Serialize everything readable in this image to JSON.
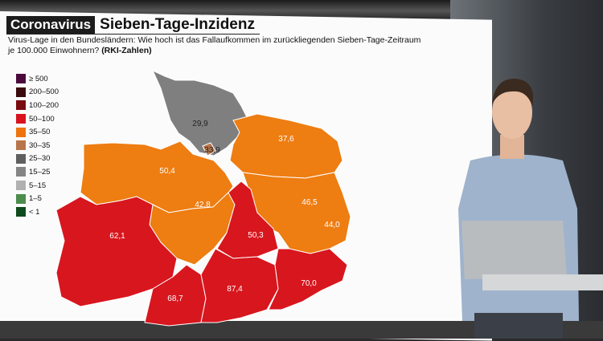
{
  "header": {
    "tag": "Coronavirus",
    "title": "Sieben-Tage-Inzidenz",
    "subtitle": "Virus-Lage in den Bundesländern: Wie hoch ist das Fallaufkommen im zurückliegenden Sieben-Tage-Zeitraum je 100.000 Einwohnern?",
    "source": "(RKI-Zahlen)"
  },
  "legend": [
    {
      "label": "≥ 500",
      "color": "#4a0a3c"
    },
    {
      "label": "200–500",
      "color": "#3a0a0c"
    },
    {
      "label": "100–200",
      "color": "#7a0a0e"
    },
    {
      "label": "50–100",
      "color": "#d8121e"
    },
    {
      "label": "35–50",
      "color": "#ee7410"
    },
    {
      "label": "30–35",
      "color": "#b8744a"
    },
    {
      "label": "25–30",
      "color": "#5f5f5f"
    },
    {
      "label": "15–25",
      "color": "#858585"
    },
    {
      "label": "5–15",
      "color": "#b0b0b0"
    },
    {
      "label": "1–5",
      "color": "#4c8c4c"
    },
    {
      "label": "< 1",
      "color": "#0f4a1c"
    }
  ],
  "regions": [
    {
      "value": "29,9",
      "color": "#7f7f7f"
    },
    {
      "value": "37,6",
      "color": "#ee7d12"
    },
    {
      "value": "50,4",
      "color": "#ee7d12"
    },
    {
      "value": "42,8",
      "color": "#ee7d12"
    },
    {
      "value": "46,5",
      "color": "#ee7d12"
    },
    {
      "value": "44,0",
      "color": "#ee7d12"
    },
    {
      "value": "50,3",
      "color": "#d8161e"
    },
    {
      "value": "62,1",
      "color": "#d8161e"
    },
    {
      "value": "68,7",
      "color": "#d8161e"
    },
    {
      "value": "87,4",
      "color": "#d8161e"
    },
    {
      "value": "70,0",
      "color": "#d8161e"
    },
    {
      "value": "33,9",
      "color": "#b8744a"
    }
  ]
}
